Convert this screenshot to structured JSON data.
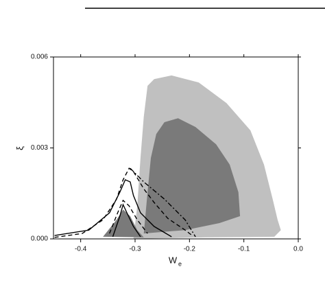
{
  "chart_data": {
    "type": "contour",
    "x_label": "W",
    "x_label_subscript": "e",
    "y_label": "ξ",
    "xlim": [
      -0.45,
      0
    ],
    "ylim": [
      0,
      0.006
    ],
    "xticks": [
      -0.4,
      -0.3,
      -0.2,
      -0.1,
      {
        "value": 0,
        "label": "0.0"
      }
    ],
    "yticks": [
      {
        "value": 0,
        "label": "0.000"
      },
      {
        "value": 0.003,
        "label": "0.003"
      },
      {
        "value": 0.006,
        "label": "0.006"
      }
    ],
    "series": [
      {
        "color": "#c0c0c0",
        "filled": true,
        "dash": "none",
        "x": [
          -0.303,
          -0.296,
          -0.29,
          -0.284,
          -0.277,
          -0.265,
          -0.233,
          -0.183,
          -0.132,
          -0.088,
          -0.063,
          -0.047,
          -0.038,
          -0.032,
          -0.044,
          -0.17
        ],
        "values": [
          0,
          0.00109,
          0.00267,
          0.00403,
          0.00505,
          0.00527,
          0.00539,
          0.00516,
          0.00448,
          0.00358,
          0.00245,
          0.00131,
          0.00063,
          0.00029,
          7e-05,
          5e-05
        ]
      },
      {
        "color": "#7a7a7a",
        "filled": true,
        "dash": "none",
        "x": [
          -0.284,
          -0.277,
          -0.271,
          -0.261,
          -0.246,
          -0.221,
          -0.189,
          -0.151,
          -0.126,
          -0.11,
          -0.107,
          -0.145,
          -0.208
        ],
        "values": [
          0.00018,
          0.00154,
          0.00267,
          0.00346,
          0.00385,
          0.00398,
          0.00369,
          0.00312,
          0.00245,
          0.00154,
          0.00075,
          0.00052,
          0.00029
        ]
      },
      {
        "color": "#7a7a7a",
        "filled": true,
        "dash": "none",
        "x": [
          -0.359,
          -0.334,
          -0.322,
          -0.309,
          -0.296,
          -0.284
        ],
        "values": [
          7e-05,
          0.00063,
          0.00097,
          0.00075,
          0.00029,
          5e-05
        ]
      },
      {
        "color": "#000000",
        "filled": false,
        "dash": "6,4",
        "x": [
          -0.448,
          -0.397,
          -0.359,
          -0.334,
          -0.322,
          -0.311,
          -0.303,
          -0.284,
          -0.265,
          -0.24,
          -0.208,
          -0.195
        ],
        "values": [
          5e-05,
          0.00018,
          0.00063,
          0.00131,
          0.00195,
          0.00233,
          0.00222,
          0.00165,
          0.0012,
          0.00068,
          0.00029,
          0.00011
        ]
      },
      {
        "color": "#000000",
        "filled": false,
        "dash": "7,3,2,3",
        "x": [
          -0.309,
          -0.284,
          -0.246,
          -0.208,
          -0.189
        ],
        "values": [
          0.00233,
          0.00188,
          0.00131,
          0.00063,
          7e-05
        ]
      },
      {
        "color": "#000000",
        "filled": false,
        "dash": "none",
        "x": [
          -0.448,
          -0.385,
          -0.347,
          -0.328,
          -0.318,
          -0.309,
          -0.303,
          -0.29,
          -0.265,
          -0.233
        ],
        "values": [
          0.00011,
          0.00029,
          0.00086,
          0.00154,
          0.00195,
          0.00188,
          0.00143,
          0.00086,
          0.00041,
          7e-05
        ]
      },
      {
        "color": "#000000",
        "filled": false,
        "dash": "6,4",
        "x": [
          -0.347,
          -0.332,
          -0.322,
          -0.311,
          -0.296,
          -0.277
        ],
        "values": [
          0.00018,
          0.00086,
          0.00127,
          0.00109,
          0.00063,
          0.00018
        ]
      },
      {
        "color": "#000000",
        "filled": false,
        "dash": "none",
        "x": [
          -0.341,
          -0.328,
          -0.322,
          -0.315,
          -0.303,
          -0.29
        ],
        "values": [
          7e-05,
          0.00075,
          0.00113,
          0.00086,
          0.00041,
          7e-05
        ]
      }
    ]
  }
}
